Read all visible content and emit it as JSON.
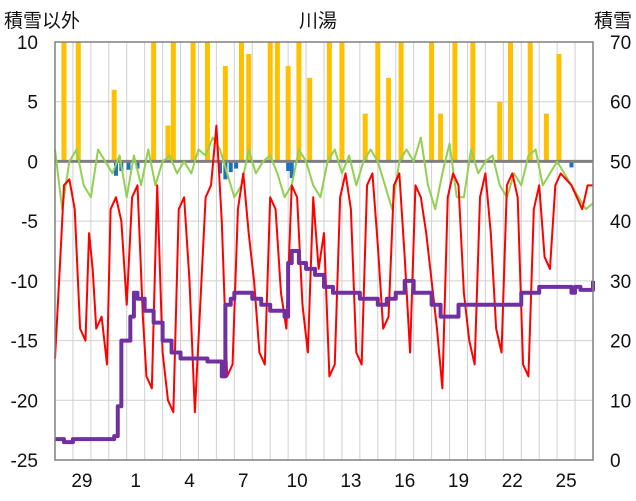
{
  "chart_data": {
    "type": "combo",
    "title": "川湯",
    "ylabel_left": "積雪以外",
    "ylabel_right": "積雪",
    "ylim_left": [
      -25,
      10
    ],
    "ylim_right": [
      0,
      70
    ],
    "yticks_left": [
      10,
      5,
      0,
      -5,
      -10,
      -15,
      -20,
      -25
    ],
    "yticks_right": [
      70,
      60,
      50,
      40,
      30,
      20,
      10,
      0
    ],
    "x_range_days": [
      0,
      30
    ],
    "xtick_labels": [
      "29",
      "1",
      "4",
      "7",
      "10",
      "13",
      "16",
      "19",
      "22",
      "25"
    ],
    "xtick_positions": [
      1.5,
      4.5,
      7.5,
      10.5,
      13.5,
      16.5,
      19.5,
      22.5,
      25.5,
      28.5
    ],
    "grid": true,
    "series": [
      {
        "kind": "bars-up",
        "axis": "left",
        "color": "#ffc000",
        "x": [
          0.5,
          1.3,
          3.3,
          5.5,
          6.3,
          6.6,
          7.7,
          8.5,
          9.5,
          10.4,
          10.8,
          12.0,
          12.4,
          13.0,
          13.6,
          14.2,
          15.3,
          16.0,
          17.3,
          18.0,
          18.6,
          19.3,
          21.0,
          21.5,
          22.3,
          23.3,
          24.8,
          25.4,
          26.5,
          27.4,
          28.1
        ],
        "values": [
          10,
          10,
          6,
          10,
          3,
          10,
          10,
          10,
          8,
          10,
          9,
          10,
          10,
          8,
          10,
          7,
          10,
          10,
          4,
          10,
          7,
          10,
          10,
          4,
          10,
          10,
          5,
          10,
          10,
          4,
          9
        ]
      },
      {
        "kind": "bars-down",
        "axis": "left",
        "color": "#1f6fbf",
        "x": [
          3.4,
          3.7,
          4.1,
          4.6,
          9.2,
          9.5,
          9.8,
          10.1,
          13.0,
          13.2,
          28.8
        ],
        "values": [
          -1.2,
          -0.8,
          -0.7,
          -0.6,
          -1.0,
          -1.5,
          -0.9,
          -0.6,
          -0.8,
          -1.4,
          -0.5
        ]
      },
      {
        "name": "",
        "kind": "line",
        "axis": "left",
        "color": "#ff0000",
        "width": 2,
        "x": [
          0.0,
          0.3,
          0.5,
          0.8,
          1.1,
          1.4,
          1.7,
          1.9,
          2.1,
          2.3,
          2.6,
          2.9,
          3.1,
          3.4,
          3.7,
          4.0,
          4.3,
          4.6,
          4.9,
          5.1,
          5.4,
          5.7,
          6.0,
          6.3,
          6.6,
          6.9,
          7.2,
          7.5,
          7.8,
          8.1,
          8.4,
          8.7,
          9.0,
          9.3,
          9.6,
          9.9,
          10.2,
          10.5,
          10.8,
          11.1,
          11.4,
          11.7,
          12.0,
          12.3,
          12.6,
          12.9,
          13.2,
          13.5,
          13.8,
          14.1,
          14.4,
          14.7,
          15.0,
          15.3,
          15.6,
          15.9,
          16.2,
          16.5,
          16.8,
          17.1,
          17.4,
          17.7,
          18.0,
          18.3,
          18.6,
          18.9,
          19.2,
          19.5,
          19.8,
          20.1,
          20.4,
          20.7,
          21.0,
          21.3,
          21.6,
          21.9,
          22.2,
          22.5,
          22.8,
          23.1,
          23.4,
          23.7,
          24.0,
          24.3,
          24.6,
          24.9,
          25.2,
          25.5,
          25.8,
          26.1,
          26.4,
          26.7,
          27.0,
          27.3,
          27.6,
          27.9,
          28.2,
          28.5,
          28.8,
          29.1,
          29.4,
          29.7,
          30.0
        ],
        "values": [
          -16.5,
          -8,
          -2,
          -1.5,
          -4,
          -14,
          -15,
          -6,
          -9,
          -14,
          -13,
          -17,
          -4,
          -3,
          -5,
          -12,
          -3,
          -2,
          -13,
          -18,
          -19,
          -2,
          -16,
          -20,
          -21,
          -4,
          -3,
          -10,
          -21,
          -12,
          -3,
          -2,
          3,
          -5,
          -18,
          -17,
          -4,
          -1,
          -6,
          -10,
          -16,
          -17,
          -3,
          -4,
          -11,
          -14,
          -2,
          -3,
          -12,
          -16,
          -3,
          -9,
          -6,
          -18,
          -17,
          -3,
          -1,
          -4,
          -16,
          -17,
          -2,
          -1,
          -7,
          -14,
          -13,
          -2,
          -1,
          -8,
          -16,
          -2,
          -3,
          -6,
          -10,
          -14,
          -19,
          -3,
          -1,
          -2,
          -11,
          -15,
          -17,
          -3,
          -1,
          -6,
          -14,
          -16,
          -2,
          -1,
          -3,
          -17,
          -18,
          -4,
          -2,
          -8,
          -9,
          -2,
          -1,
          -1.5,
          -2,
          -3,
          -4,
          -2,
          -2
        ],
        "note": ""
      },
      {
        "name": "",
        "kind": "line",
        "axis": "left",
        "color": "#92d050",
        "width": 2,
        "x": [
          0.0,
          0.4,
          0.8,
          1.2,
          1.6,
          2.0,
          2.4,
          2.8,
          3.2,
          3.6,
          4.0,
          4.4,
          4.8,
          5.2,
          5.6,
          6.0,
          6.4,
          6.8,
          7.2,
          7.6,
          8.0,
          8.4,
          8.8,
          9.2,
          9.6,
          10.0,
          10.4,
          10.8,
          11.2,
          11.6,
          12.0,
          12.4,
          12.8,
          13.2,
          13.6,
          14.0,
          14.4,
          14.8,
          15.2,
          15.6,
          16.0,
          16.4,
          16.8,
          17.2,
          17.6,
          18.0,
          18.4,
          18.8,
          19.2,
          19.6,
          20.0,
          20.4,
          20.8,
          21.2,
          21.6,
          22.0,
          22.4,
          22.8,
          23.2,
          23.6,
          24.0,
          24.4,
          24.8,
          25.2,
          25.6,
          26.0,
          26.4,
          26.8,
          27.2,
          27.6,
          28.0,
          28.4,
          28.8,
          29.2,
          29.6,
          30.0
        ],
        "values": [
          1,
          -4,
          0,
          1,
          -2,
          -3,
          1,
          0,
          -1,
          0.5,
          -3,
          0.5,
          -2,
          1,
          -2,
          0,
          0.5,
          -1,
          0,
          -1,
          1,
          0.5,
          2,
          1,
          -1,
          -3,
          -2,
          1,
          -1,
          0,
          0.5,
          -1,
          -3,
          -2,
          1,
          0,
          -2,
          -3,
          0,
          1,
          -1,
          0.5,
          -2,
          0,
          1,
          0,
          -2,
          -4,
          0,
          1,
          0,
          2,
          -2,
          -4,
          -1,
          1.5,
          -3,
          -3,
          1,
          -1,
          0,
          0.5,
          -2,
          -3,
          -1,
          -2,
          0.5,
          1,
          -2,
          -1,
          0,
          -1,
          -2,
          -3,
          -4,
          -3.5
        ]
      },
      {
        "name": "",
        "kind": "step-line",
        "axis": "right",
        "color": "#7030a0",
        "width": 4,
        "x": [
          0.0,
          0.5,
          1.0,
          1.5,
          2.0,
          2.5,
          3.0,
          3.3,
          3.5,
          3.7,
          4.0,
          4.2,
          4.4,
          4.6,
          5.0,
          5.5,
          6.0,
          6.5,
          7.0,
          7.5,
          8.0,
          8.5,
          9.0,
          9.3,
          9.5,
          9.8,
          10.0,
          10.5,
          11.0,
          11.5,
          12.0,
          12.5,
          12.8,
          13.0,
          13.2,
          13.6,
          14.0,
          14.5,
          15.0,
          15.5,
          16.0,
          17.0,
          18.0,
          18.5,
          19.0,
          19.5,
          20.0,
          21.0,
          21.5,
          22.0,
          22.5,
          23.0,
          24.0,
          25.0,
          25.5,
          26.0,
          27.0,
          27.5,
          28.0,
          28.5,
          28.8,
          29.0,
          29.3,
          29.6,
          30.0
        ],
        "values": [
          3.5,
          3,
          3.5,
          3.5,
          3.5,
          3.5,
          3.5,
          4,
          9,
          20,
          20,
          24,
          28,
          27,
          25,
          23,
          20,
          18,
          17,
          17,
          17,
          16.5,
          16.5,
          14,
          26,
          27,
          28,
          28,
          27,
          26,
          25,
          25,
          24,
          33,
          35,
          33,
          32,
          31,
          29,
          28,
          28,
          27,
          26,
          27,
          28,
          30,
          28,
          26,
          24,
          24,
          26,
          26,
          26,
          26,
          26,
          28,
          29,
          29,
          29,
          29,
          28,
          29,
          28.5,
          28.5,
          30
        ]
      }
    ]
  }
}
